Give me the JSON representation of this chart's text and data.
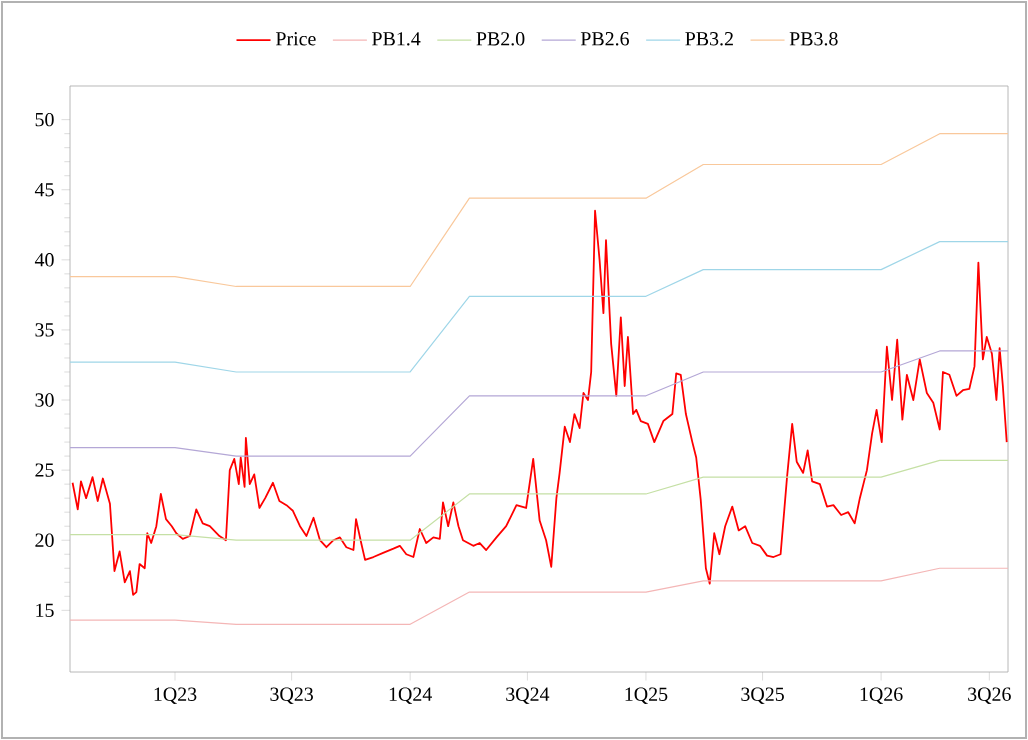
{
  "chart_data": {
    "type": "line",
    "legend": "top",
    "xlim": [
      "2022-07-22",
      "2026-07-17"
    ],
    "ylim": [
      10.6,
      52.4
    ],
    "xticks": [
      {
        "value": "2023-01-01",
        "label": "1Q23"
      },
      {
        "value": "2023-07-01",
        "label": "3Q23"
      },
      {
        "value": "2024-01-01",
        "label": "1Q24"
      },
      {
        "value": "2024-07-01",
        "label": "3Q24"
      },
      {
        "value": "2025-01-01",
        "label": "1Q25"
      },
      {
        "value": "2025-07-01",
        "label": "3Q25"
      },
      {
        "value": "2026-01-01",
        "label": "1Q26"
      },
      {
        "value": "2026-06-18",
        "label": "3Q26"
      }
    ],
    "yticks": [
      15,
      20,
      25,
      30,
      35,
      40,
      45,
      50
    ],
    "series": [
      {
        "name": "Price",
        "color": "#ff0000",
        "x": [
          "2022-07-26",
          "2022-08-03",
          "2022-08-08",
          "2022-08-16",
          "2022-08-26",
          "2022-09-03",
          "2022-09-11",
          "2022-09-22",
          "2022-09-29",
          "2022-10-07",
          "2022-10-15",
          "2022-10-23",
          "2022-10-28",
          "2022-11-02",
          "2022-11-07",
          "2022-11-15",
          "2022-11-19",
          "2022-11-25",
          "2022-12-03",
          "2022-12-10",
          "2022-12-18",
          "2022-12-27",
          "2023-01-03",
          "2023-01-13",
          "2023-01-24",
          "2023-02-03",
          "2023-02-13",
          "2023-02-24",
          "2023-03-11",
          "2023-03-21",
          "2023-03-27",
          "2023-04-03",
          "2023-04-10",
          "2023-04-13",
          "2023-04-19",
          "2023-04-21",
          "2023-04-27",
          "2023-05-04",
          "2023-05-12",
          "2023-05-21",
          "2023-06-02",
          "2023-06-12",
          "2023-06-23",
          "2023-07-03",
          "2023-07-14",
          "2023-07-24",
          "2023-08-04",
          "2023-08-14",
          "2023-08-24",
          "2023-09-04",
          "2023-09-14",
          "2023-09-24",
          "2023-10-05",
          "2023-10-09",
          "2023-10-17",
          "2023-10-23",
          "2023-11-05",
          "2023-11-20",
          "2023-12-06",
          "2023-12-16",
          "2023-12-26",
          "2024-01-06",
          "2024-01-16",
          "2024-01-26",
          "2024-02-06",
          "2024-02-16",
          "2024-02-21",
          "2024-02-29",
          "2024-03-08",
          "2024-03-16",
          "2024-03-23",
          "2024-04-08",
          "2024-04-18",
          "2024-04-28",
          "2024-05-14",
          "2024-05-29",
          "2024-06-14",
          "2024-06-29",
          "2024-07-10",
          "2024-07-20",
          "2024-07-30",
          "2024-08-07",
          "2024-08-15",
          "2024-08-20",
          "2024-08-28",
          "2024-09-05",
          "2024-09-12",
          "2024-09-20",
          "2024-09-26",
          "2024-10-03",
          "2024-10-08",
          "2024-10-14",
          "2024-10-21",
          "2024-10-27",
          "2024-10-31",
          "2024-11-08",
          "2024-11-16",
          "2024-11-23",
          "2024-11-29",
          "2024-12-04",
          "2024-12-12",
          "2024-12-17",
          "2024-12-24",
          "2025-01-04",
          "2025-01-14",
          "2025-01-28",
          "2025-02-11",
          "2025-02-17",
          "2025-02-24",
          "2025-03-04",
          "2025-03-14",
          "2025-03-20",
          "2025-03-27",
          "2025-04-04",
          "2025-04-10",
          "2025-04-17",
          "2025-04-25",
          "2025-05-04",
          "2025-05-15",
          "2025-05-25",
          "2025-06-04",
          "2025-06-15",
          "2025-06-27",
          "2025-07-08",
          "2025-07-18",
          "2025-07-29",
          "2025-08-08",
          "2025-08-16",
          "2025-08-23",
          "2025-09-02",
          "2025-09-09",
          "2025-09-16",
          "2025-09-28",
          "2025-10-09",
          "2025-10-19",
          "2025-10-31",
          "2025-11-11",
          "2025-11-21",
          "2025-11-29",
          "2025-12-10",
          "2025-12-18",
          "2025-12-25",
          "2026-01-02",
          "2026-01-10",
          "2026-01-18",
          "2026-01-26",
          "2026-02-03",
          "2026-02-10",
          "2026-02-20",
          "2026-03-02",
          "2026-03-13",
          "2026-03-23",
          "2026-04-02",
          "2026-04-07",
          "2026-04-17",
          "2026-04-28",
          "2026-05-08",
          "2026-05-18",
          "2026-05-26",
          "2026-06-01",
          "2026-06-08",
          "2026-06-14",
          "2026-06-22",
          "2026-06-29",
          "2026-07-04",
          "2026-07-09",
          "2026-07-15"
        ],
        "values": [
          24.1,
          22.2,
          24.2,
          23.0,
          24.5,
          22.8,
          24.4,
          22.6,
          17.8,
          19.2,
          17.0,
          17.8,
          16.1,
          16.3,
          18.3,
          18.0,
          20.5,
          19.8,
          21.0,
          23.3,
          21.5,
          21.0,
          20.5,
          20.1,
          20.3,
          22.2,
          21.2,
          21.0,
          20.3,
          20.0,
          25.0,
          25.8,
          24.0,
          25.9,
          23.8,
          27.3,
          24.0,
          24.7,
          22.3,
          23.0,
          24.1,
          22.8,
          22.5,
          22.1,
          21.0,
          20.3,
          21.6,
          20.0,
          19.5,
          20.0,
          20.2,
          19.5,
          19.3,
          21.5,
          19.8,
          18.6,
          18.8,
          19.1,
          19.4,
          19.6,
          19.0,
          18.8,
          20.8,
          19.8,
          20.2,
          20.1,
          22.7,
          21.0,
          22.7,
          21.0,
          20.0,
          19.6,
          19.8,
          19.3,
          20.2,
          21.0,
          22.5,
          22.3,
          25.8,
          21.4,
          20.0,
          18.1,
          23.0,
          24.8,
          28.1,
          27.0,
          29.0,
          28.0,
          30.5,
          30.0,
          32.0,
          43.5,
          40.0,
          36.2,
          41.4,
          34.0,
          30.3,
          35.9,
          31.0,
          34.5,
          29.0,
          29.3,
          28.5,
          28.3,
          27.0,
          28.5,
          29.0,
          31.9,
          31.8,
          29.0,
          27.0,
          25.9,
          22.9,
          18.0,
          16.9,
          20.5,
          19.0,
          21.0,
          22.4,
          20.7,
          21.0,
          19.8,
          19.6,
          18.9,
          18.8,
          19.0,
          24.5,
          28.3,
          25.6,
          24.8,
          26.4,
          24.2,
          24.0,
          22.4,
          22.5,
          21.8,
          22.0,
          21.2,
          23.0,
          25.0,
          27.6,
          29.3,
          27.0,
          33.8,
          30.0,
          34.3,
          28.6,
          31.8,
          30.0,
          32.9,
          30.5,
          29.8,
          27.9,
          32.0,
          31.8,
          30.3,
          30.7,
          30.8,
          32.4,
          39.8,
          32.9,
          34.5,
          33.3,
          30.0,
          33.7,
          31.0,
          27.0
        ]
      },
      {
        "name": "PB1.4",
        "color": "#f4b6b6",
        "x": [
          "2022-07-22",
          "2023-01-01",
          "2023-04-06",
          "2024-01-01",
          "2024-04-02",
          "2025-01-01",
          "2025-03-31",
          "2026-01-01",
          "2026-04-02",
          "2026-07-17"
        ],
        "values": [
          14.3,
          14.3,
          14.0,
          14.0,
          16.3,
          16.3,
          17.1,
          17.1,
          18.0,
          18.0
        ]
      },
      {
        "name": "PB2.0",
        "color": "#c5e0a5",
        "x": [
          "2022-07-22",
          "2023-01-01",
          "2023-04-06",
          "2024-01-01",
          "2024-04-02",
          "2025-01-01",
          "2025-03-31",
          "2026-01-01",
          "2026-04-02",
          "2026-07-17"
        ],
        "values": [
          20.4,
          20.4,
          20.0,
          20.0,
          23.3,
          23.3,
          24.5,
          24.5,
          25.7,
          25.7
        ]
      },
      {
        "name": "PB2.6",
        "color": "#b4a7d6",
        "x": [
          "2022-07-22",
          "2023-01-01",
          "2023-04-06",
          "2024-01-01",
          "2024-04-02",
          "2025-01-01",
          "2025-03-31",
          "2026-01-01",
          "2026-04-02",
          "2026-07-17"
        ],
        "values": [
          26.6,
          26.6,
          26.0,
          26.0,
          30.3,
          30.3,
          32.0,
          32.0,
          33.5,
          33.5
        ]
      },
      {
        "name": "PB3.2",
        "color": "#9fd6e8",
        "x": [
          "2022-07-22",
          "2023-01-01",
          "2023-04-06",
          "2024-01-01",
          "2024-04-02",
          "2025-01-01",
          "2025-03-31",
          "2026-01-01",
          "2026-04-02",
          "2026-07-17"
        ],
        "values": [
          32.7,
          32.7,
          32.0,
          32.0,
          37.4,
          37.4,
          39.3,
          39.3,
          41.3,
          41.3
        ]
      },
      {
        "name": "PB3.8",
        "color": "#f9c89b",
        "x": [
          "2022-07-22",
          "2023-01-01",
          "2023-04-06",
          "2024-01-01",
          "2024-04-02",
          "2025-01-01",
          "2025-03-31",
          "2026-01-01",
          "2026-04-02",
          "2026-07-17"
        ],
        "values": [
          38.8,
          38.8,
          38.1,
          38.1,
          44.4,
          44.4,
          46.8,
          46.8,
          49.0,
          49.0
        ]
      }
    ]
  }
}
